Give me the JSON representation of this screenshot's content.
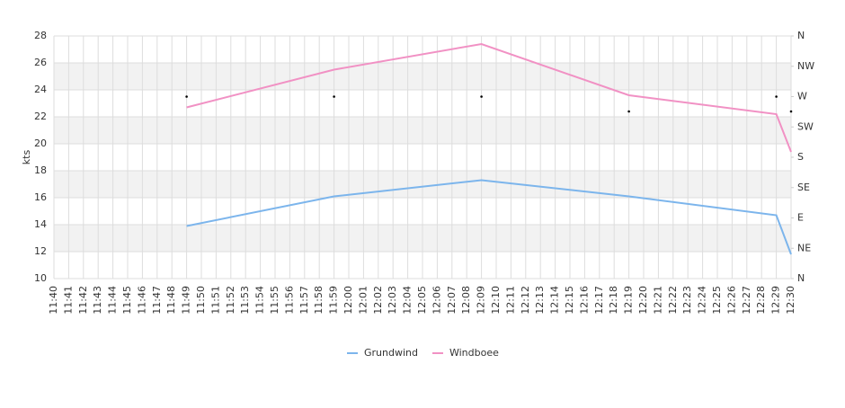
{
  "chart_data": {
    "type": "line",
    "y_label": "kts",
    "categories": [
      "11:40",
      "11:41",
      "11:42",
      "11:43",
      "11:44",
      "11:45",
      "11:46",
      "11:47",
      "11:48",
      "11:49",
      "11:50",
      "11:51",
      "11:52",
      "11:53",
      "11:54",
      "11:55",
      "11:56",
      "11:57",
      "11:58",
      "11:59",
      "12:00",
      "12:01",
      "12:02",
      "12:03",
      "12:04",
      "12:05",
      "12:06",
      "12:07",
      "12:08",
      "12:09",
      "12:10",
      "12:11",
      "12:12",
      "12:13",
      "12:14",
      "12:15",
      "12:16",
      "12:17",
      "12:18",
      "12:19",
      "12:20",
      "12:21",
      "12:22",
      "12:23",
      "12:24",
      "12:25",
      "12:26",
      "12:27",
      "12:28",
      "12:29",
      "12:30"
    ],
    "series": [
      {
        "name": "Grundwind",
        "color": "#7cb5ec",
        "x": [
          "11:49",
          "11:59",
          "12:09",
          "12:19",
          "12:29",
          "12:30"
        ],
        "values": [
          13.9,
          16.1,
          17.3,
          16.1,
          14.7,
          11.8
        ]
      },
      {
        "name": "Windboee",
        "color": "#f191c4",
        "x": [
          "11:49",
          "11:59",
          "12:09",
          "12:19",
          "12:29",
          "12:30"
        ],
        "values": [
          22.7,
          25.5,
          27.4,
          23.6,
          22.2,
          19.4
        ]
      },
      {
        "axis": "y2",
        "marker": "dot",
        "color": "#000000",
        "x": [
          "11:49",
          "11:59",
          "12:09",
          "12:19",
          "12:29",
          "12:30"
        ],
        "values": [
          270,
          270,
          270,
          248,
          270,
          248
        ]
      }
    ],
    "ylim": [
      10,
      28
    ],
    "yticks": [
      10,
      12,
      14,
      16,
      18,
      20,
      22,
      24,
      26,
      28
    ],
    "y2lim": [
      0,
      360
    ],
    "y2ticks": [
      {
        "value": 0,
        "label": "N"
      },
      {
        "value": 45,
        "label": "NE"
      },
      {
        "value": 90,
        "label": "E"
      },
      {
        "value": 135,
        "label": "SE"
      },
      {
        "value": 180,
        "label": "S"
      },
      {
        "value": 225,
        "label": "SW"
      },
      {
        "value": 270,
        "label": "W"
      },
      {
        "value": 315,
        "label": "NW"
      },
      {
        "value": 360,
        "label": "N"
      }
    ],
    "grid": true
  }
}
